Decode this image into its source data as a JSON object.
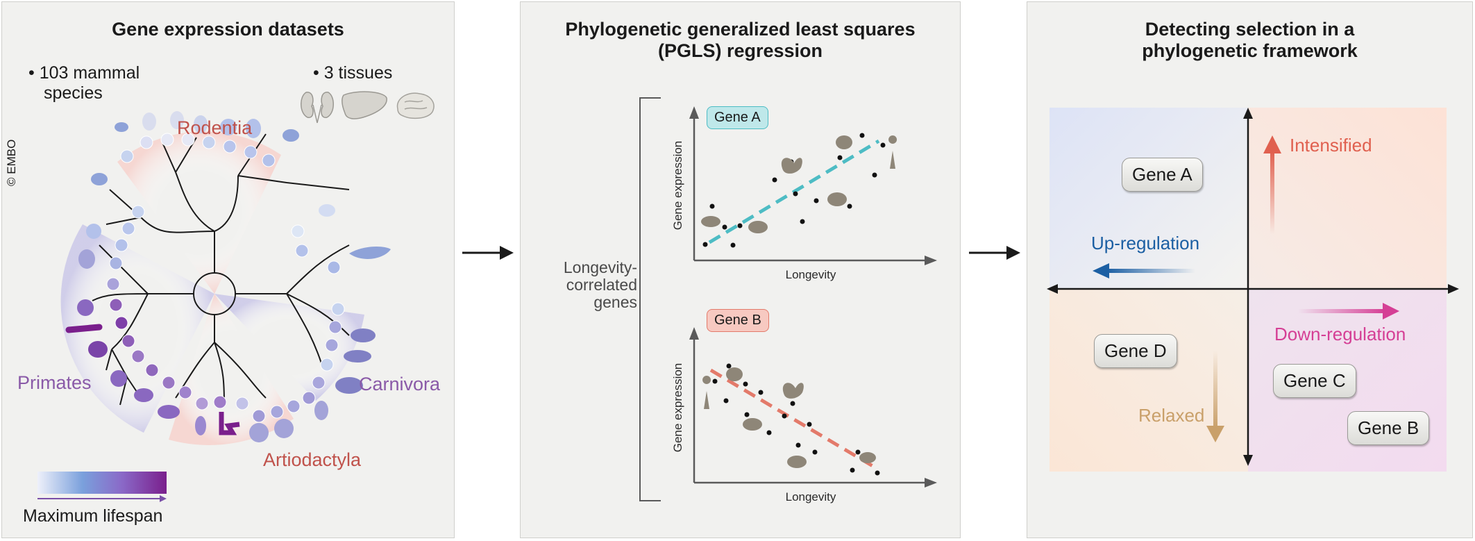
{
  "copyright": "© EMBO",
  "panel1": {
    "title": "Gene expression datasets",
    "bullet1": "103 mammal species",
    "bullet1_line1": "103 mammal",
    "bullet1_line2": "species",
    "bullet2": "3 tissues",
    "clades": {
      "rodentia": "Rodentia",
      "primates": "Primates",
      "carnivora": "Carnivora",
      "artiodactyla": "Artiodactyla"
    },
    "legend_label": "Maximum lifespan",
    "colors": {
      "clade_red": "#c0524b",
      "clade_purple": "#8a5aa8",
      "lifespan_low": "#e8ecf8",
      "lifespan_high": "#7a1f8c"
    }
  },
  "panel2": {
    "title_line1": "Phylogenetic generalized least squares",
    "title_line2": "(PGLS) regression",
    "side_label_line1": "Longevity-",
    "side_label_line2": "correlated",
    "side_label_line3": "genes",
    "plot_a": {
      "gene": "Gene A",
      "ylabel": "Gene expression",
      "xlabel": "Longevity",
      "trend": "positive",
      "line_color": "#4dbcc4"
    },
    "plot_b": {
      "gene": "Gene B",
      "ylabel": "Gene expression",
      "xlabel": "Longevity",
      "trend": "negative",
      "line_color": "#e37a6a"
    }
  },
  "panel3": {
    "title_line1": "Detecting selection in a",
    "title_line2": "phylogenetic framework",
    "intensified": "Intensified",
    "relaxed": "Relaxed",
    "up_regulation": "Up-regulation",
    "down_regulation": "Down-regulation",
    "genes": {
      "a": "Gene A",
      "b": "Gene B",
      "c": "Gene C",
      "d": "Gene D"
    },
    "colors": {
      "intensified": "#e0604f",
      "relaxed": "#c9a06a",
      "up": "#1c5fa3",
      "down": "#d53f95"
    }
  }
}
